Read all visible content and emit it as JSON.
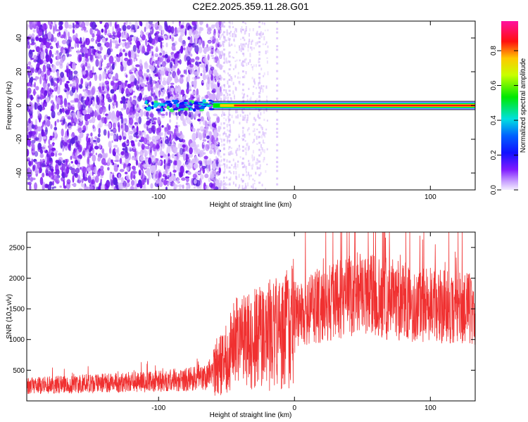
{
  "figure": {
    "title": "C2E2.2025.359.11.28.G01"
  },
  "chart_data": [
    {
      "type": "heatmap",
      "xlabel": "Height of straight line (km)",
      "ylabel": "Frequency (Hz)",
      "xlim": [
        -197,
        133
      ],
      "ylim": [
        -50,
        50
      ],
      "xticks": [
        -100,
        0,
        100
      ],
      "yticks": [
        -40,
        -20,
        0,
        20,
        40
      ],
      "colorbar": {
        "label": "Normalized spectral amplitude",
        "range": [
          0,
          0.97
        ],
        "ticks": [
          0.0,
          0.2,
          0.4,
          0.6,
          0.8
        ],
        "scale": "rainbow (magenta-blue-cyan-green-yellow-red-magenta)"
      },
      "features": {
        "noise_region_km": [
          -197,
          -60
        ],
        "faint_noise_km": [
          -60,
          -20
        ],
        "carrier_start_km": -110,
        "carrier_frequency_hz": 0,
        "carrier_strong_from_km": -60,
        "carrier_peak_amplitude": 0.97
      }
    },
    {
      "type": "line",
      "xlabel": "Height of straight line (km)",
      "ylabel": "SNR (10 * v/v)",
      "xlim": [
        -197,
        133
      ],
      "ylim": [
        0,
        2750
      ],
      "xticks": [
        -100,
        0,
        100
      ],
      "yticks": [
        500,
        1000,
        1500,
        2000,
        2500
      ],
      "series_color": "#f03030",
      "profile": {
        "x": [
          -197,
          -150,
          -100,
          -80,
          -65,
          -55,
          -45,
          -35,
          -20,
          -5,
          10,
          30,
          50,
          70,
          90,
          110,
          133
        ],
        "y": [
          250,
          280,
          320,
          350,
          380,
          600,
          900,
          950,
          1050,
          1200,
          1500,
          1650,
          1750,
          1650,
          1600,
          1550,
          1500
        ]
      }
    }
  ]
}
